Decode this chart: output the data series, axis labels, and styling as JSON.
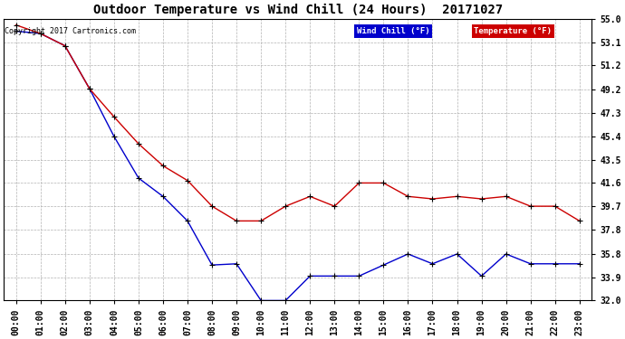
{
  "title": "Outdoor Temperature vs Wind Chill (24 Hours)  20171027",
  "copyright": "Copyright 2017 Cartronics.com",
  "x_labels": [
    "00:00",
    "01:00",
    "02:00",
    "03:00",
    "04:00",
    "05:00",
    "06:00",
    "07:00",
    "08:00",
    "09:00",
    "10:00",
    "11:00",
    "12:00",
    "13:00",
    "14:00",
    "15:00",
    "16:00",
    "17:00",
    "18:00",
    "19:00",
    "20:00",
    "21:00",
    "22:00",
    "23:00"
  ],
  "temperature": [
    54.5,
    53.8,
    52.8,
    49.3,
    47.0,
    44.8,
    43.0,
    41.8,
    39.7,
    38.5,
    38.5,
    39.7,
    40.5,
    39.7,
    41.6,
    41.6,
    40.5,
    40.3,
    40.5,
    40.3,
    40.5,
    39.7,
    39.7,
    38.5
  ],
  "wind_chill": [
    54.0,
    53.8,
    52.8,
    49.3,
    45.4,
    42.0,
    40.5,
    38.5,
    34.9,
    35.0,
    32.0,
    32.0,
    34.0,
    34.0,
    34.0,
    34.9,
    35.8,
    35.0,
    35.8,
    34.0,
    35.8,
    35.0,
    35.0,
    35.0
  ],
  "temp_color": "#cc0000",
  "wind_chill_color": "#0000cc",
  "marker": "+",
  "marker_color": "#000000",
  "bg_color": "#ffffff",
  "grid_color": "#aaaaaa",
  "y_ticks": [
    32.0,
    33.9,
    35.8,
    37.8,
    39.7,
    41.6,
    43.5,
    45.4,
    47.3,
    49.2,
    51.2,
    53.1,
    55.0
  ],
  "y_min": 32.0,
  "y_max": 55.0,
  "legend_wind_label": "Wind Chill (°F)",
  "legend_temp_label": "Temperature (°F)",
  "legend_wind_bg": "#0000cc",
  "legend_temp_bg": "#cc0000",
  "legend_text_color": "#ffffff",
  "title_fontsize": 10,
  "tick_fontsize": 7,
  "ytick_fontsize": 7,
  "figwidth": 6.9,
  "figheight": 3.75,
  "dpi": 100
}
